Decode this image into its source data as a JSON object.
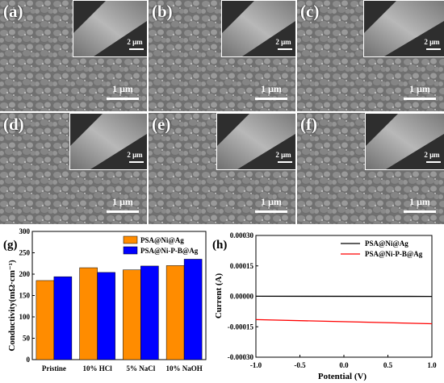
{
  "sem_panels": [
    {
      "letter": "(a)",
      "scale_main": "1 μm",
      "scale_inset": "2 μm"
    },
    {
      "letter": "(b)",
      "scale_main": "1 μm",
      "scale_inset": "2 μm"
    },
    {
      "letter": "(c)",
      "scale_main": "1 μm",
      "scale_inset": "2 μm"
    },
    {
      "letter": "(d)",
      "scale_main": "1 μm",
      "scale_inset": "2 μm"
    },
    {
      "letter": "(e)",
      "scale_main": "1 μm",
      "scale_inset": "2 μm"
    },
    {
      "letter": "(f)",
      "scale_main": "1 μm",
      "scale_inset": "2 μm"
    }
  ],
  "chart_data": [
    {
      "panel": "(g)",
      "type": "bar",
      "ylabel": "Conductivity(mΩ·cm⁻¹)",
      "categories": [
        "Pristine",
        "10% HCl",
        "5% NaCl",
        "10% NaOH"
      ],
      "ylim": [
        0,
        300
      ],
      "yticks": [
        0,
        50,
        100,
        150,
        200,
        250,
        300
      ],
      "series": [
        {
          "name": "PSA@Ni@Ag",
          "color": "#ff8c00",
          "values": [
            185,
            215,
            210,
            220
          ]
        },
        {
          "name": "PSA@Ni-P-B@Ag",
          "color": "#0000ff",
          "values": [
            194,
            204,
            219,
            235
          ]
        }
      ],
      "legend": "top-left",
      "grid": false
    },
    {
      "panel": "(h)",
      "type": "line",
      "xlabel": "Potential (V)",
      "ylabel": "Current (A)",
      "xlim": [
        -1.0,
        1.0
      ],
      "ylim": [
        -0.0003,
        0.0003
      ],
      "xticks": [
        "-1.0",
        "-0.5",
        "0.0",
        "0.5",
        "1.0"
      ],
      "yticks": [
        "0.00030",
        "0.00015",
        "0.00000",
        "-0.00015",
        "-0.00030"
      ],
      "series": [
        {
          "name": "PSA@Ni@Ag",
          "color": "#000000",
          "x": [
            -1.0,
            1.0
          ],
          "y": [
            5e-07,
            -5e-07
          ]
        },
        {
          "name": "PSA@Ni-P-B@Ag",
          "color": "#ff0000",
          "x": [
            -1.0,
            1.0
          ],
          "y": [
            -0.000115,
            -0.000135
          ]
        }
      ],
      "legend": "top-right",
      "grid": false
    }
  ]
}
